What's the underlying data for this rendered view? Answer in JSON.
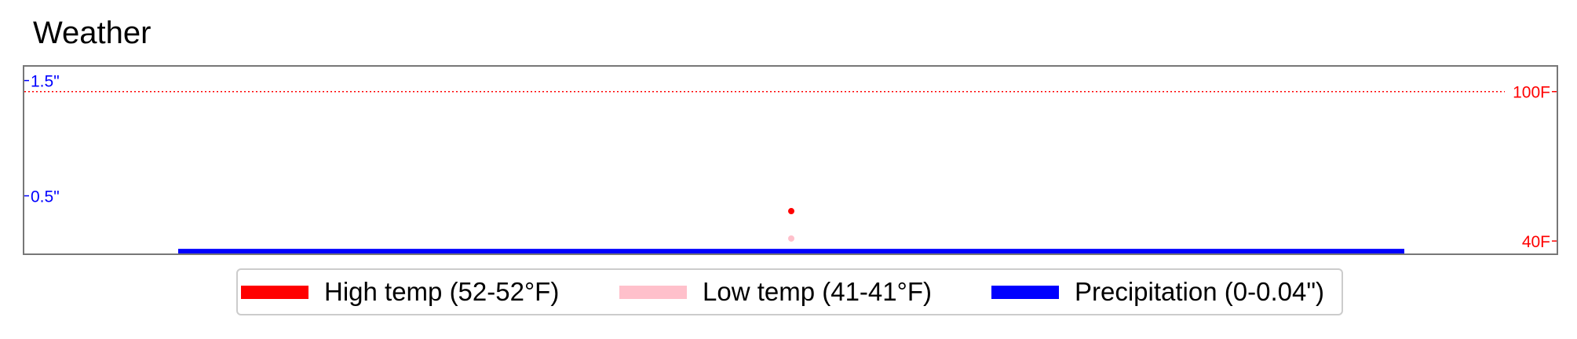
{
  "title": "Weather",
  "chart_data": {
    "type": "scatter",
    "title": "Weather",
    "x": [
      0.5
    ],
    "xlim": [
      0,
      1
    ],
    "left_axis": {
      "label": "",
      "ticks": [
        "1.5\"",
        "0.5\""
      ],
      "tick_values": [
        1.5,
        0.5
      ],
      "ylim": [
        0,
        1.62
      ],
      "color": "#0000ff"
    },
    "right_axis": {
      "label": "",
      "ticks": [
        "100F",
        "40F"
      ],
      "tick_values": [
        100,
        40
      ],
      "ylim": [
        35,
        110
      ],
      "color": "#ff0000"
    },
    "reference_line": {
      "value": 100,
      "axis": "right",
      "style": "dotted",
      "color": "#ff0000"
    },
    "series": [
      {
        "name": "High temp (52-52°F)",
        "axis": "right",
        "values": [
          52
        ],
        "color": "#ff0000"
      },
      {
        "name": "Low temp (41-41°F)",
        "axis": "right",
        "values": [
          41
        ],
        "color": "#ffc0cb"
      },
      {
        "name": "Precipitation (0-0.04\")",
        "axis": "left",
        "values": [
          0.04
        ],
        "color": "#0000ff"
      }
    ],
    "legend": "bottom-center",
    "grid": false
  }
}
